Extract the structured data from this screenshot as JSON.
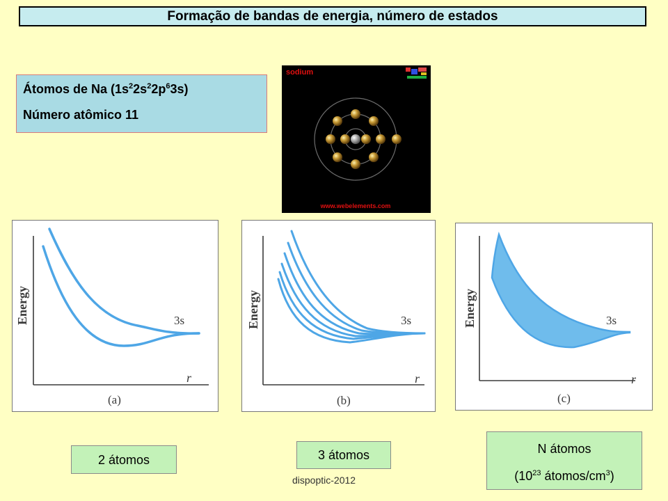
{
  "title": "Formação de bandas de energia, número de estados",
  "info": {
    "line1": {
      "prefix": "Átomos de Na (1s",
      "s1": "2",
      "t1": "2s",
      "s2": "2",
      "t2": "2p",
      "s3": "6",
      "t3": "3s)"
    },
    "line2": "Número atômico 11"
  },
  "sodium_image": {
    "label": "sodium",
    "url_text": "www.webelements.com"
  },
  "panels": [
    {
      "ylabel": "Energy",
      "xlabel": "r",
      "level": "3s",
      "caption": "(a)"
    },
    {
      "ylabel": "Energy",
      "xlabel": "r",
      "level": "3s",
      "caption": "(b)"
    },
    {
      "ylabel": "Energy",
      "xlabel": "r",
      "level": "3s",
      "caption": "(c)"
    }
  ],
  "counts": {
    "two": "2 átomos",
    "three": "3 átomos",
    "n_line1": "N átomos",
    "n_line2_prefix": "(10",
    "n_line2_exp": "23",
    "n_line2_mid": " átomos/cm",
    "n_line2_exp2": "3",
    "n_line2_suffix": ")"
  },
  "footer": "dispoptic-2012",
  "colors": {
    "curve": "#4ea6e6",
    "band_fill": "#6fbcec",
    "title_bg": "#c6ecef",
    "info_bg": "#a9dbe4",
    "count_bg": "#c3f2b8",
    "page_bg": "#ffffc4"
  }
}
